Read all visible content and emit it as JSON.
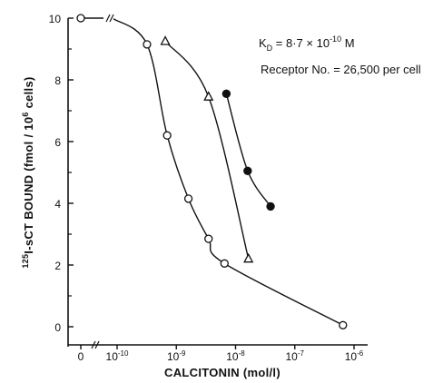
{
  "chart_data": {
    "type": "line",
    "xlabel": "CALCITONIN (mol/l)",
    "ylabel_parts": {
      "sup": "125",
      "main": "I-sCT BOUND  (fmol / 10",
      "sup2": "6",
      "end": " cells)"
    },
    "xscale": "log",
    "x_ticks": [
      {
        "label_base": "0",
        "label_exp": "",
        "value": null
      },
      {
        "label_base": "10",
        "label_exp": "-10",
        "value": 1e-10
      },
      {
        "label_base": "10",
        "label_exp": "-9",
        "value": 1e-09
      },
      {
        "label_base": "10",
        "label_exp": "-8",
        "value": 1e-08
      },
      {
        "label_base": "10",
        "label_exp": "-7",
        "value": 1e-07
      },
      {
        "label_base": "10",
        "label_exp": "-6",
        "value": 1e-06
      }
    ],
    "y_ticks": [
      "0",
      "2",
      "4",
      "6",
      "8",
      "10"
    ],
    "ylim": [
      0,
      10
    ],
    "grid": false,
    "annotations": {
      "kd_label": "K",
      "kd_sub": "D",
      "kd_value": " = 8·7 × 10",
      "kd_exp": "-10",
      "kd_unit": " M",
      "receptor": "Receptor No. = 26,500 per cell"
    },
    "series": [
      {
        "marker": "open-circle",
        "points": [
          {
            "x": 0,
            "y": 10.0
          },
          {
            "x": 3.2e-10,
            "y": 9.15
          },
          {
            "x": 7e-10,
            "y": 6.2
          },
          {
            "x": 1.6e-09,
            "y": 4.15
          },
          {
            "x": 3.5e-09,
            "y": 2.85
          },
          {
            "x": 6.5e-09,
            "y": 2.05
          },
          {
            "x": 6.5e-07,
            "y": 0.05
          }
        ]
      },
      {
        "marker": "open-triangle",
        "points": [
          {
            "x": 6.5e-10,
            "y": 9.25
          },
          {
            "x": 3.5e-09,
            "y": 7.45
          },
          {
            "x": 1.65e-08,
            "y": 2.2
          }
        ]
      },
      {
        "marker": "filled-circle",
        "points": [
          {
            "x": 7e-09,
            "y": 7.55
          },
          {
            "x": 1.6e-08,
            "y": 5.05
          },
          {
            "x": 3.9e-08,
            "y": 3.9
          }
        ]
      }
    ]
  }
}
